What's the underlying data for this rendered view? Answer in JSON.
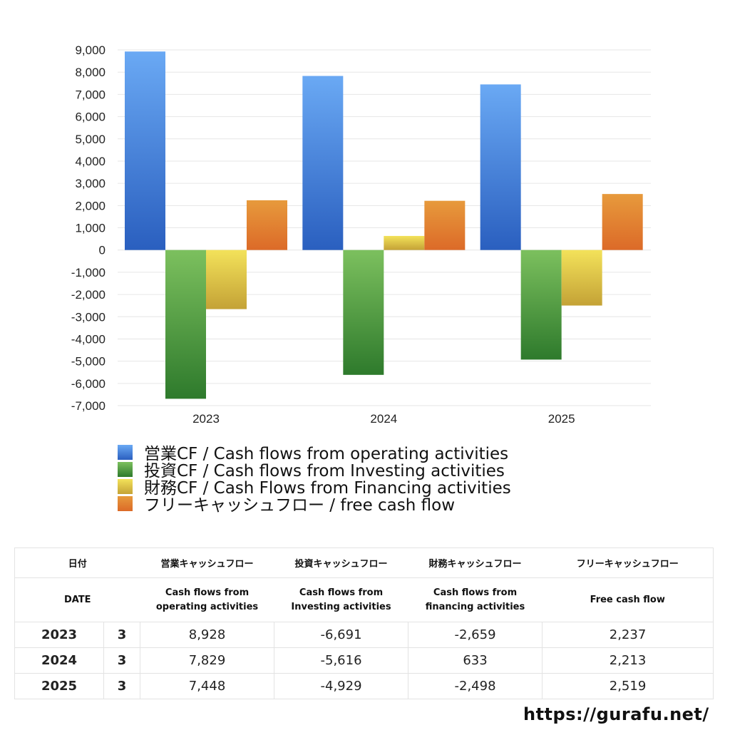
{
  "chart_data": {
    "type": "bar",
    "categories": [
      "2023",
      "2024",
      "2025"
    ],
    "series": [
      {
        "name": "営業CF / Cash flows from operating activities",
        "values": [
          8928,
          7829,
          7448
        ],
        "color": "#3f7de0"
      },
      {
        "name": "投資CF / Cash flows from Investing activities",
        "values": [
          -6691,
          -5616,
          -4929
        ],
        "color": "#4f9e3c"
      },
      {
        "name": "財務CF / Cash Flows from Financing activities",
        "values": [
          -2659,
          633,
          -2498
        ],
        "color": "#d9c23a"
      },
      {
        "name": "フリーキャッシュフロー / free cash flow",
        "values": [
          2237,
          2213,
          2519
        ],
        "color": "#e07a2f"
      }
    ],
    "ylim": [
      -7000,
      9000
    ],
    "ytick_step": 1000,
    "yticks": [
      "9,000",
      "8,000",
      "7,000",
      "6,000",
      "5,000",
      "4,000",
      "3,000",
      "2,000",
      "1,000",
      "0",
      "-1,000",
      "-2,000",
      "-3,000",
      "-4,000",
      "-5,000",
      "-6,000",
      "-7,000"
    ],
    "grid": true,
    "legend_position": "bottom-left"
  },
  "table": {
    "headers_ja": [
      "日付",
      "営業キャッシュフロー",
      "投資キャッシュフロー",
      "財務キャッシュフロー",
      "フリーキャッシュフロー"
    ],
    "date_label": "DATE",
    "headers_en": [
      [
        "Cash flows from",
        "operating activities"
      ],
      [
        "Cash flows from",
        "Investing activities"
      ],
      [
        "Cash flows from",
        "financing activities"
      ],
      [
        "Free cash flow"
      ]
    ],
    "rows": [
      {
        "year": "2023",
        "month": "3",
        "operating": "8,928",
        "investing": "-6,691",
        "financing": "-2,659",
        "free": "2,237"
      },
      {
        "year": "2024",
        "month": "3",
        "operating": "7,829",
        "investing": "-5,616",
        "financing": "633",
        "free": "2,213"
      },
      {
        "year": "2025",
        "month": "3",
        "operating": "7,448",
        "investing": "-4,929",
        "financing": "-2,498",
        "free": "2,519"
      }
    ]
  },
  "site_url": "https://gurafu.net/"
}
